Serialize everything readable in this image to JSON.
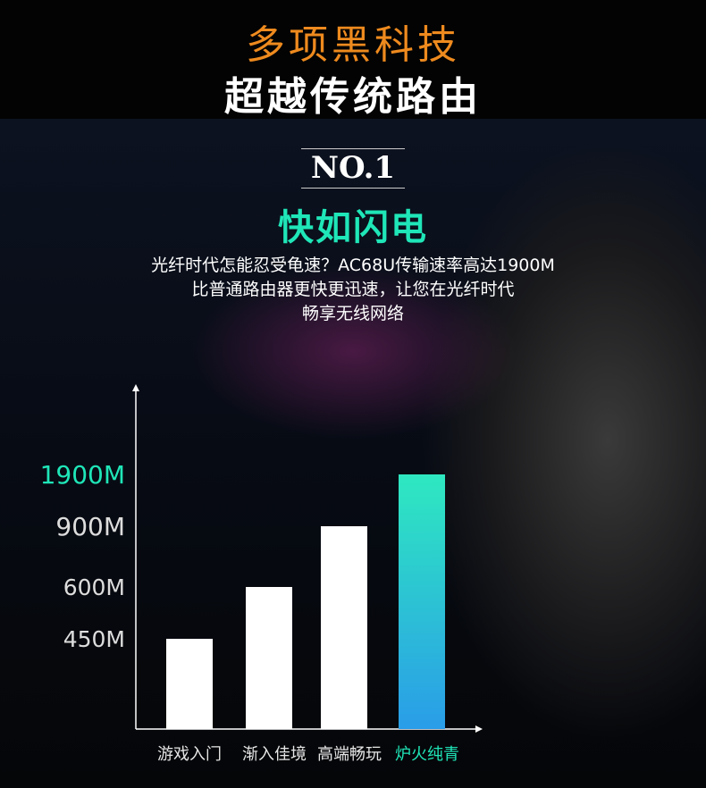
{
  "header": {
    "title": "多项黑科技",
    "subtitle": "超越传统路由"
  },
  "section": {
    "badge": "NO.1",
    "heading": "快如闪电",
    "desc": [
      "光纤时代怎能忍受龟速？AC68U传输速率高达1900M",
      "比普通路由器更快更迅速，让您在光纤时代",
      "畅享无线网络"
    ]
  },
  "colors": {
    "accent_orange": "#ee8a1e",
    "accent_teal": "#1fe6b8",
    "highlight_bar_top": "#2ee8c0",
    "highlight_bar_bottom": "#2a9de8"
  },
  "chart_data": {
    "type": "bar",
    "categories": [
      "游戏入门",
      "渐入佳境",
      "高端畅玩",
      "炉火纯青"
    ],
    "values": [
      450,
      600,
      900,
      1900
    ],
    "tick_labels": [
      "450M",
      "600M",
      "900M",
      "1900M"
    ],
    "unit": "M",
    "highlight_index": 3,
    "grid": false,
    "legend": "none"
  }
}
